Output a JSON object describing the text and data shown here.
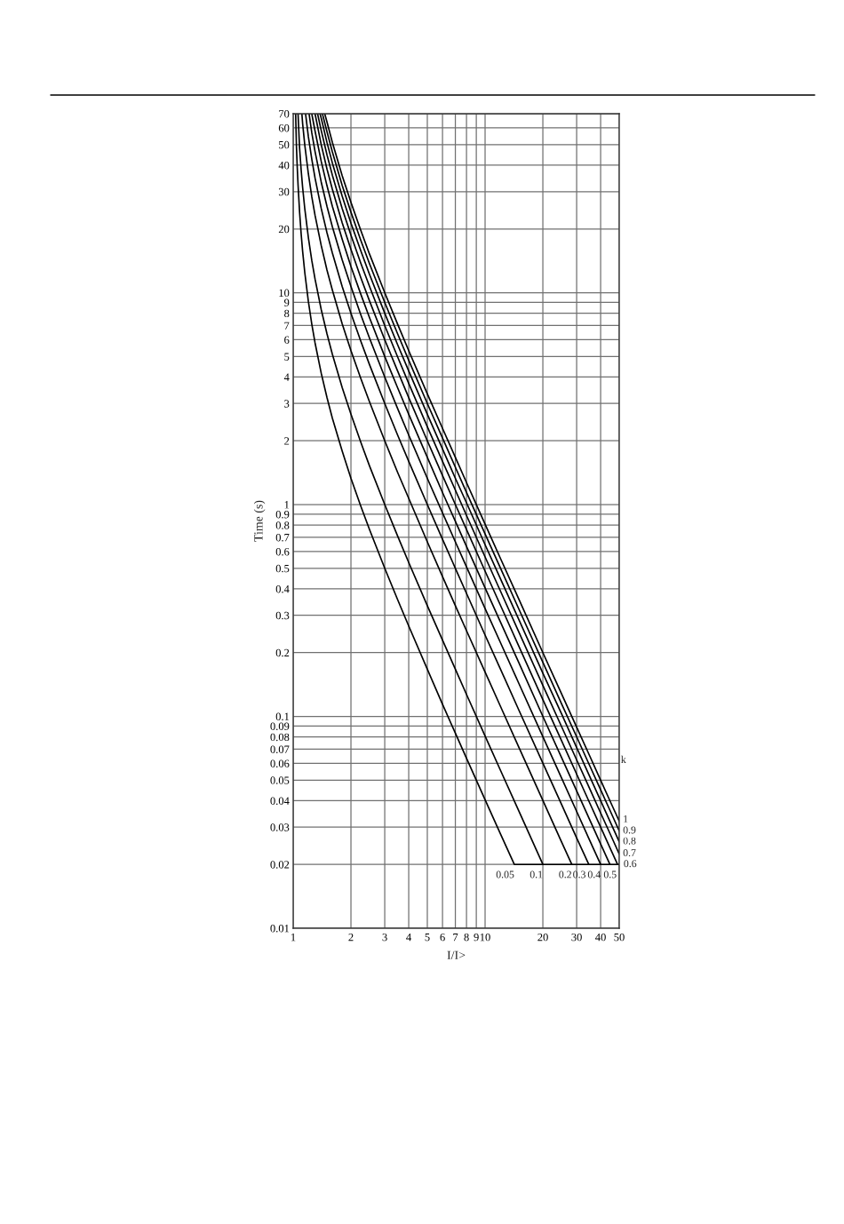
{
  "chart_data": {
    "type": "line",
    "xlabel": "I/I>",
    "ylabel": "Time (s)",
    "legend_title": "k",
    "log": "xy",
    "grid": true,
    "line_style": "solid",
    "xlim": [
      1,
      50
    ],
    "ylim": [
      0.01,
      70
    ],
    "xticks": [
      1,
      2,
      3,
      4,
      5,
      6,
      7,
      8,
      9,
      10,
      20,
      30,
      40,
      50
    ],
    "yticks": [
      0.01,
      0.02,
      0.03,
      0.04,
      0.05,
      0.06,
      0.07,
      0.08,
      0.09,
      0.1,
      0.2,
      0.3,
      0.4,
      0.5,
      0.6,
      0.7,
      0.8,
      0.9,
      1,
      2,
      3,
      4,
      5,
      6,
      7,
      8,
      9,
      10,
      20,
      30,
      40,
      50,
      60,
      70
    ],
    "series": [
      {
        "name": "0.05",
        "color": "#000000",
        "x": [
          1.03,
          1.04,
          1.05,
          1.06,
          1.08,
          1.1,
          1.12,
          1.15,
          1.2,
          1.25,
          1.3,
          1.4,
          1.5,
          1.6,
          1.8,
          2,
          2.25,
          2.5,
          3,
          3.5,
          4,
          5,
          6,
          7,
          8,
          10,
          12,
          14.2,
          50
        ],
        "values": [
          70,
          49.0,
          39.0,
          32.4,
          24.0,
          19.0,
          15.7,
          12.4,
          9.09,
          7.11,
          5.8,
          4.17,
          3.2,
          2.56,
          1.79,
          1.33,
          0.984,
          0.762,
          0.5,
          0.356,
          0.267,
          0.167,
          0.114,
          0.0833,
          0.0635,
          0.0404,
          0.028,
          0.02,
          0.02
        ]
      },
      {
        "name": "0.1",
        "color": "#000000",
        "x": [
          1.06,
          1.08,
          1.1,
          1.12,
          1.15,
          1.2,
          1.25,
          1.3,
          1.4,
          1.5,
          1.6,
          1.8,
          2,
          2.25,
          2.5,
          3,
          3.5,
          4,
          5,
          6,
          7,
          8,
          10,
          12,
          15,
          20
        ],
        "values": [
          70,
          48.1,
          38.1,
          31.4,
          24.8,
          18.2,
          14.2,
          11.6,
          8.33,
          6.4,
          5.13,
          3.57,
          2.67,
          1.97,
          1.52,
          1.0,
          0.711,
          0.533,
          0.333,
          0.229,
          0.167,
          0.127,
          0.0808,
          0.0559,
          0.0357,
          0.02
        ]
      },
      {
        "name": "0.2",
        "color": "#000000",
        "x": [
          1.11,
          1.12,
          1.15,
          1.2,
          1.25,
          1.3,
          1.4,
          1.5,
          1.6,
          1.8,
          2,
          2.25,
          2.5,
          3,
          3.5,
          4,
          5,
          6,
          7,
          8,
          10,
          12,
          15,
          20,
          25,
          28.3
        ],
        "values": [
          70,
          62.9,
          49.6,
          36.4,
          28.4,
          23.2,
          16.7,
          12.8,
          10.3,
          7.14,
          5.33,
          3.94,
          3.05,
          2.0,
          1.42,
          1.07,
          0.667,
          0.457,
          0.333,
          0.254,
          0.162,
          0.112,
          0.0714,
          0.0401,
          0.0256,
          0.02
        ]
      },
      {
        "name": "0.3",
        "color": "#000000",
        "x": [
          1.16,
          1.2,
          1.25,
          1.3,
          1.4,
          1.5,
          1.6,
          1.8,
          2,
          2.25,
          2.5,
          3,
          3.5,
          4,
          5,
          6,
          7,
          8,
          10,
          12,
          15,
          20,
          25,
          30,
          34.7
        ],
        "values": [
          70,
          54.5,
          42.7,
          34.8,
          25.0,
          19.2,
          15.4,
          10.7,
          8.0,
          5.91,
          4.57,
          3.0,
          2.13,
          1.6,
          1.0,
          0.686,
          0.5,
          0.381,
          0.242,
          0.168,
          0.107,
          0.0602,
          0.0385,
          0.0267,
          0.02
        ]
      },
      {
        "name": "0.4",
        "color": "#000000",
        "x": [
          1.21,
          1.25,
          1.3,
          1.4,
          1.5,
          1.6,
          1.8,
          2,
          2.25,
          2.5,
          3,
          3.5,
          4,
          5,
          6,
          7,
          8,
          10,
          12,
          15,
          20,
          25,
          30,
          35,
          40
        ],
        "values": [
          70,
          56.9,
          46.4,
          33.3,
          25.6,
          20.5,
          14.3,
          10.7,
          7.88,
          6.1,
          4.0,
          2.84,
          2.13,
          1.33,
          0.914,
          0.667,
          0.508,
          0.323,
          0.224,
          0.143,
          0.0802,
          0.0513,
          0.0356,
          0.0261,
          0.02
        ]
      },
      {
        "name": "0.5",
        "color": "#000000",
        "x": [
          1.25,
          1.3,
          1.4,
          1.5,
          1.6,
          1.8,
          2,
          2.25,
          2.5,
          3,
          3.5,
          4,
          5,
          6,
          7,
          8,
          10,
          12,
          15,
          20,
          25,
          30,
          35,
          40,
          44.7
        ],
        "values": [
          70,
          58.0,
          41.7,
          32.0,
          25.6,
          17.9,
          13.3,
          9.85,
          7.62,
          5.0,
          3.56,
          2.67,
          1.67,
          1.14,
          0.833,
          0.635,
          0.404,
          0.28,
          0.179,
          0.1,
          0.0641,
          0.0445,
          0.0327,
          0.025,
          0.02
        ]
      },
      {
        "name": "0.6",
        "color": "#000000",
        "x": [
          1.3,
          1.4,
          1.5,
          1.6,
          1.8,
          2,
          2.25,
          2.5,
          3,
          3.5,
          4,
          5,
          6,
          7,
          8,
          10,
          12,
          15,
          20,
          25,
          30,
          35,
          40,
          45,
          49
        ],
        "values": [
          70,
          50.0,
          38.4,
          30.8,
          21.4,
          16.0,
          11.8,
          9.14,
          6.0,
          4.27,
          3.2,
          2.0,
          1.37,
          1.0,
          0.762,
          0.485,
          0.336,
          0.214,
          0.12,
          0.0769,
          0.0534,
          0.0392,
          0.03,
          0.0237,
          0.02
        ]
      },
      {
        "name": "0.7",
        "color": "#000000",
        "x": [
          1.34,
          1.4,
          1.5,
          1.6,
          1.8,
          2,
          2.25,
          2.5,
          3,
          3.5,
          4,
          5,
          6,
          7,
          8,
          10,
          12,
          15,
          20,
          25,
          30,
          35,
          40,
          45,
          50
        ],
        "values": [
          70,
          58.3,
          44.8,
          35.9,
          25.0,
          18.7,
          13.8,
          10.7,
          7.0,
          4.98,
          3.73,
          2.33,
          1.6,
          1.17,
          0.889,
          0.566,
          0.392,
          0.25,
          0.14,
          0.0897,
          0.0623,
          0.0458,
          0.035,
          0.0277,
          0.0224
        ]
      },
      {
        "name": "0.8",
        "color": "#000000",
        "x": [
          1.38,
          1.4,
          1.5,
          1.6,
          1.8,
          2,
          2.25,
          2.5,
          3,
          3.5,
          4,
          5,
          6,
          7,
          8,
          10,
          12,
          15,
          20,
          25,
          30,
          35,
          40,
          45,
          50
        ],
        "values": [
          70,
          66.7,
          51.2,
          41.0,
          28.6,
          21.3,
          15.8,
          12.2,
          8.0,
          5.69,
          4.27,
          2.67,
          1.83,
          1.33,
          1.02,
          0.646,
          0.448,
          0.286,
          0.16,
          0.103,
          0.0712,
          0.0523,
          0.04,
          0.0316,
          0.0256
        ]
      },
      {
        "name": "0.9",
        "color": "#000000",
        "x": [
          1.42,
          1.5,
          1.6,
          1.8,
          2,
          2.25,
          2.5,
          3,
          3.5,
          4,
          5,
          6,
          7,
          8,
          10,
          12,
          15,
          20,
          25,
          30,
          35,
          40,
          45,
          50
        ],
        "values": [
          70,
          57.6,
          46.2,
          32.1,
          24.0,
          17.7,
          13.7,
          9.0,
          6.4,
          4.8,
          3.0,
          2.06,
          1.5,
          1.14,
          0.727,
          0.503,
          0.321,
          0.18,
          0.115,
          0.0801,
          0.0588,
          0.045,
          0.0356,
          0.0288
        ]
      },
      {
        "name": "1",
        "color": "#000000",
        "x": [
          1.46,
          1.5,
          1.6,
          1.8,
          2,
          2.25,
          2.5,
          3,
          3.5,
          4,
          5,
          6,
          7,
          8,
          10,
          12,
          15,
          20,
          25,
          30,
          35,
          40,
          45,
          50
        ],
        "values": [
          70,
          64.0,
          51.3,
          35.7,
          26.7,
          19.7,
          15.2,
          10.0,
          7.11,
          5.33,
          3.33,
          2.29,
          1.67,
          1.27,
          0.808,
          0.559,
          0.357,
          0.2,
          0.128,
          0.089,
          0.0654,
          0.05,
          0.0395,
          0.032
        ]
      }
    ]
  }
}
